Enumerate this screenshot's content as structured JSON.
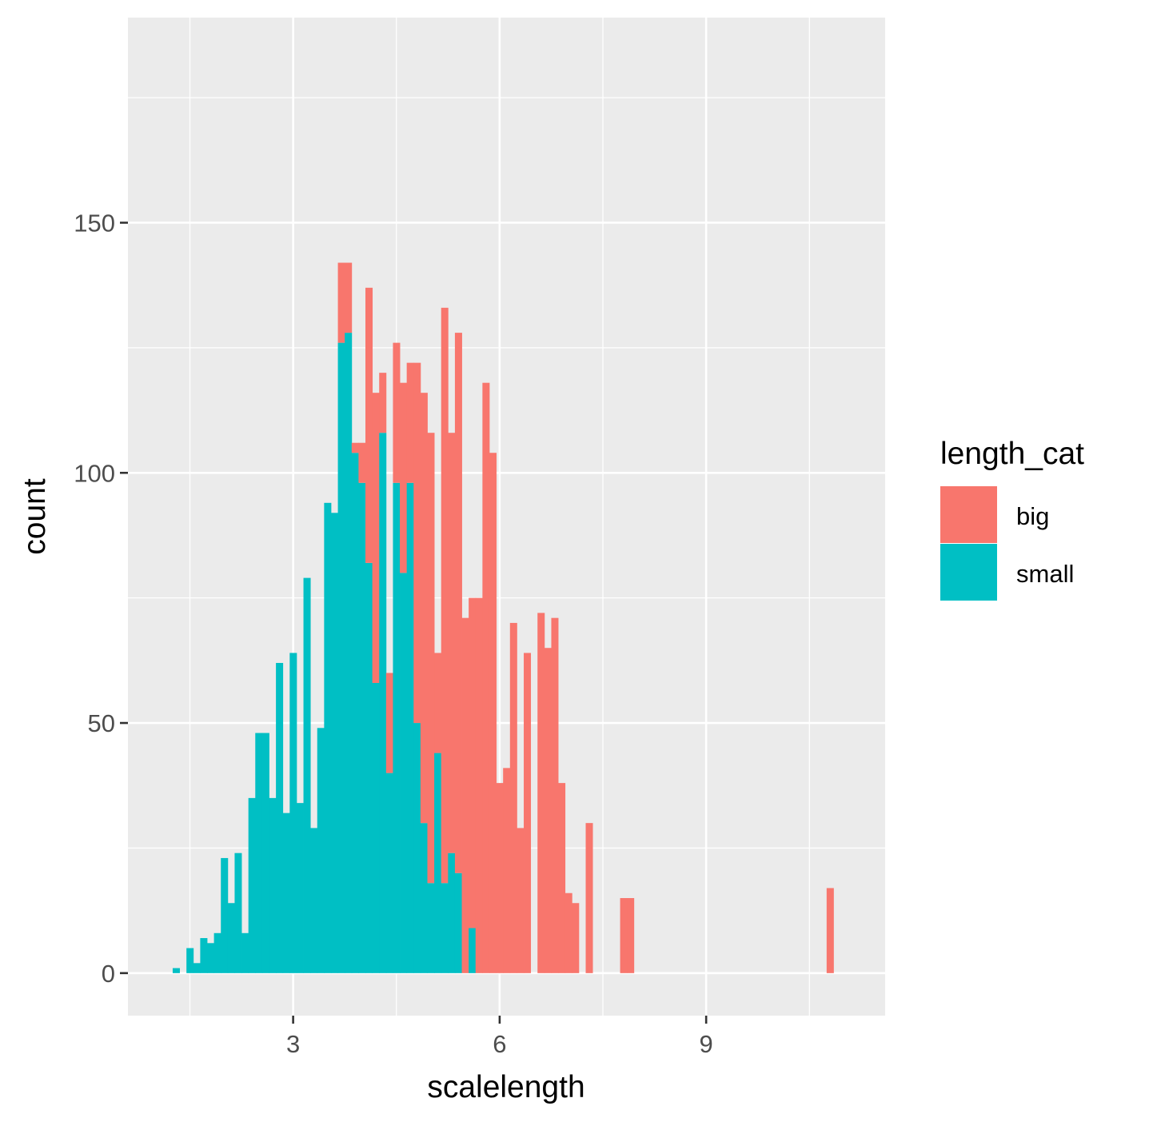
{
  "chart_data": {
    "type": "bar",
    "subtype": "stacked histogram",
    "xlabel": "scalelength",
    "ylabel": "count",
    "xlim": [
      0.6,
      11.6
    ],
    "ylim": [
      -8.5,
      191
    ],
    "x_ticks": [
      3,
      6,
      9
    ],
    "x_tick_labels": [
      "3",
      "6",
      "9"
    ],
    "y_ticks": [
      0,
      50,
      100,
      150
    ],
    "y_tick_labels": [
      "0",
      "50",
      "100",
      "150"
    ],
    "grid": true,
    "legend": {
      "title": "length_cat",
      "position": "right",
      "entries": [
        {
          "label": "big",
          "color": "#F8766D"
        },
        {
          "label": "small",
          "color": "#00BFC4"
        }
      ]
    },
    "colors": {
      "panel": "#EBEBEB",
      "grid": "#FFFFFF",
      "big": "#F8766D",
      "small": "#00BFC4"
    },
    "bin_width": 0.1,
    "bins_start": 1.25,
    "series": [
      {
        "name": "small",
        "values": [
          1,
          0,
          5,
          2,
          7,
          6,
          8,
          23,
          14,
          24,
          8,
          35,
          48,
          48,
          35,
          62,
          32,
          64,
          34,
          79,
          29,
          49,
          94,
          92,
          126,
          128,
          104,
          98,
          82,
          58,
          108,
          40,
          98,
          80,
          98,
          50,
          30,
          18,
          44,
          18,
          24,
          20,
          0,
          9,
          0,
          0,
          0,
          0,
          0,
          0,
          0,
          0,
          0,
          0,
          0,
          0,
          0,
          0,
          0,
          0,
          0,
          0,
          0,
          0,
          0,
          0,
          0,
          0,
          0,
          0,
          0,
          0,
          0,
          0,
          0,
          0,
          0,
          0,
          0,
          0,
          0,
          0,
          0,
          0,
          0,
          0,
          0,
          0,
          0,
          0,
          0,
          0,
          0,
          0,
          0,
          0,
          0,
          0
        ]
      },
      {
        "name": "big",
        "values": [
          0,
          0,
          0,
          0,
          0,
          0,
          0,
          0,
          0,
          0,
          0,
          0,
          0,
          0,
          0,
          0,
          0,
          0,
          0,
          0,
          0,
          0,
          0,
          0,
          16,
          14,
          2,
          8,
          55,
          58,
          12,
          20,
          28,
          38,
          24,
          72,
          86,
          90,
          20,
          115,
          84,
          108,
          71,
          66,
          75,
          118,
          104,
          38,
          41,
          70,
          29,
          64,
          0,
          72,
          65,
          71,
          38,
          16,
          14,
          0,
          30,
          0,
          0,
          0,
          0,
          15,
          15,
          0,
          0,
          0,
          0,
          0,
          0,
          0,
          0,
          0,
          0,
          0,
          0,
          0,
          0,
          0,
          0,
          0,
          0,
          0,
          0,
          0,
          0,
          0,
          0,
          0,
          0,
          0,
          0,
          17,
          0,
          0
        ]
      }
    ]
  }
}
